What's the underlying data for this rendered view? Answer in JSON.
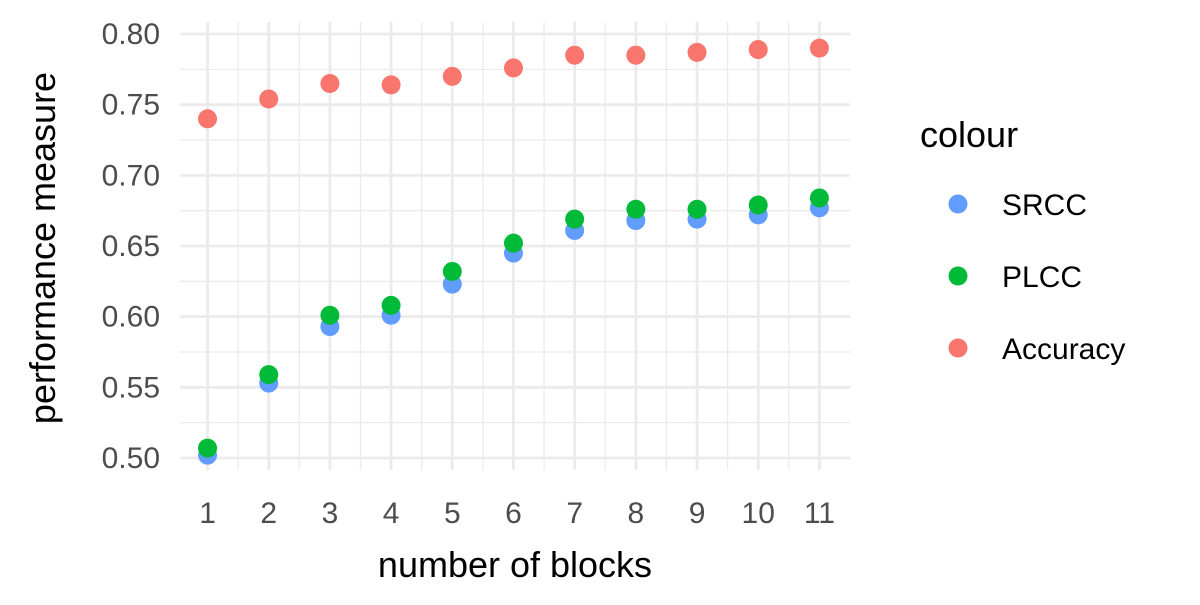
{
  "chart_data": {
    "type": "scatter",
    "xlabel": "number of blocks",
    "ylabel": "performance measure",
    "x": [
      1,
      2,
      3,
      4,
      5,
      6,
      7,
      8,
      9,
      10,
      11
    ],
    "x_ticks": [
      "1",
      "2",
      "3",
      "4",
      "5",
      "6",
      "7",
      "8",
      "9",
      "10",
      "11"
    ],
    "xlim": [
      0.55,
      11.5
    ],
    "ylim": [
      0.4915,
      0.8085
    ],
    "y_ticks": [
      "0.50",
      "0.55",
      "0.60",
      "0.65",
      "0.70",
      "0.75",
      "0.80"
    ],
    "y_tick_values": [
      0.5,
      0.55,
      0.6,
      0.65,
      0.7,
      0.75,
      0.8
    ],
    "grid": true,
    "legend": {
      "title": "colour",
      "position": "right"
    },
    "series": [
      {
        "name": "SRCC",
        "color": "#619CFF",
        "values": [
          0.502,
          0.553,
          0.593,
          0.601,
          0.623,
          0.645,
          0.661,
          0.668,
          0.669,
          0.672,
          0.677
        ]
      },
      {
        "name": "PLCC",
        "color": "#00BA38",
        "values": [
          0.507,
          0.559,
          0.601,
          0.608,
          0.632,
          0.652,
          0.669,
          0.676,
          0.676,
          0.679,
          0.684
        ]
      },
      {
        "name": "Accuracy",
        "color": "#F8766D",
        "values": [
          0.74,
          0.754,
          0.765,
          0.764,
          0.77,
          0.776,
          0.785,
          0.785,
          0.787,
          0.789,
          0.79
        ]
      }
    ]
  }
}
